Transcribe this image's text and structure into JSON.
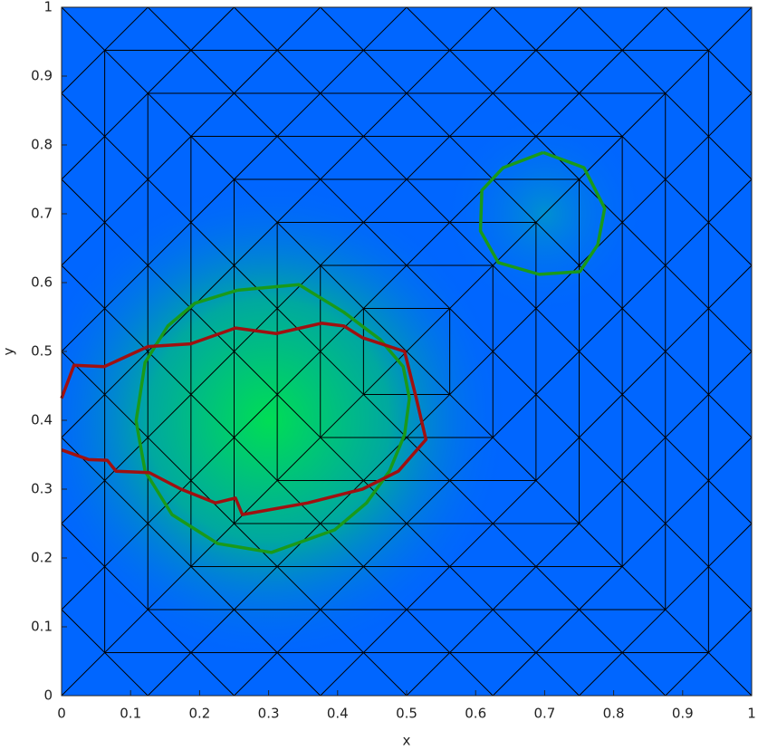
{
  "chart_data": {
    "type": "contour",
    "xlabel": "x",
    "ylabel": "y",
    "xlim": [
      0,
      1
    ],
    "ylim": [
      0,
      1
    ],
    "xticks": [
      0,
      0.1,
      0.2,
      0.3,
      0.4,
      0.5,
      0.6,
      0.7,
      0.8,
      0.9,
      1
    ],
    "yticks": [
      0,
      0.1,
      0.2,
      0.3,
      0.4,
      0.5,
      0.6,
      0.7,
      0.8,
      0.9,
      1
    ],
    "series": [
      {
        "color": "#1a9a1a",
        "x": [
          0.255,
          0.344,
          0.409,
          0.462,
          0.495,
          0.504,
          0.497,
          0.475,
          0.442,
          0.396,
          0.304,
          0.226,
          0.16,
          0.121,
          0.108,
          0.121,
          0.154,
          0.193,
          0.255
        ],
        "values": [
          0.589,
          0.597,
          0.557,
          0.517,
          0.478,
          0.432,
          0.379,
          0.326,
          0.28,
          0.241,
          0.208,
          0.221,
          0.263,
          0.326,
          0.399,
          0.484,
          0.537,
          0.57,
          0.589
        ]
      },
      {
        "color": "#1a9a1a",
        "x": [
          0.698,
          0.757,
          0.787,
          0.777,
          0.751,
          0.692,
          0.633,
          0.607,
          0.609,
          0.64,
          0.698
        ],
        "values": [
          0.789,
          0.767,
          0.708,
          0.655,
          0.616,
          0.612,
          0.629,
          0.675,
          0.734,
          0.767,
          0.789
        ]
      },
      {
        "color": "#a01010",
        "x": [
          0,
          0.018,
          0.062,
          0.125,
          0.187,
          0.252,
          0.311,
          0.377,
          0.409,
          0.436,
          0.497,
          0.514,
          0.528,
          0.488,
          0.436,
          0.357,
          0.262,
          0.252,
          0.223,
          0.173,
          0.127,
          0.079,
          0.066,
          0.039,
          0
        ],
        "values": [
          0.432,
          0.48,
          0.478,
          0.507,
          0.511,
          0.534,
          0.526,
          0.541,
          0.537,
          0.52,
          0.5,
          0.432,
          0.372,
          0.326,
          0.3,
          0.28,
          0.263,
          0.287,
          0.28,
          0.3,
          0.324,
          0.326,
          0.342,
          0.343,
          0.357
        ]
      }
    ]
  }
}
